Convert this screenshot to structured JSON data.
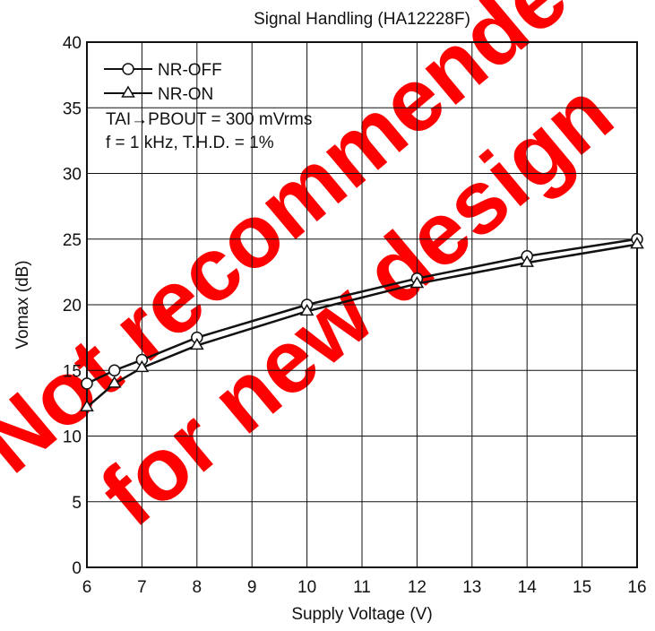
{
  "chart_data": {
    "type": "line",
    "title": "Signal Handling (HA12228F)",
    "xlabel": "Supply Voltage  (V)",
    "ylabel": "Vomax  (dB)",
    "xlim": [
      6,
      16
    ],
    "ylim": [
      0,
      40
    ],
    "xticks": [
      6,
      7,
      8,
      9,
      10,
      11,
      12,
      13,
      14,
      15,
      16
    ],
    "yticks": [
      0,
      5,
      10,
      15,
      20,
      25,
      30,
      35,
      40
    ],
    "grid": true,
    "legend_position": "top-left",
    "series": [
      {
        "name": "NR-OFF",
        "marker": "circle",
        "x": [
          6,
          6.5,
          7,
          8,
          10,
          12,
          14,
          16
        ],
        "y": [
          14,
          15,
          15.8,
          17.5,
          20,
          22,
          23.7,
          25
        ]
      },
      {
        "name": "NR-ON",
        "marker": "triangle",
        "x": [
          6,
          6.5,
          7,
          8,
          10,
          12,
          14,
          16
        ],
        "y": [
          12.2,
          14,
          15.2,
          16.9,
          19.5,
          21.6,
          23.2,
          24.6
        ]
      }
    ],
    "annotations": [
      "TAI→PBOUT = 300 mVrms",
      "f = 1 kHz, T.H.D. = 1%"
    ],
    "watermark": [
      "Not recommended",
      "for new design"
    ],
    "watermark_color": "#ff0000"
  }
}
